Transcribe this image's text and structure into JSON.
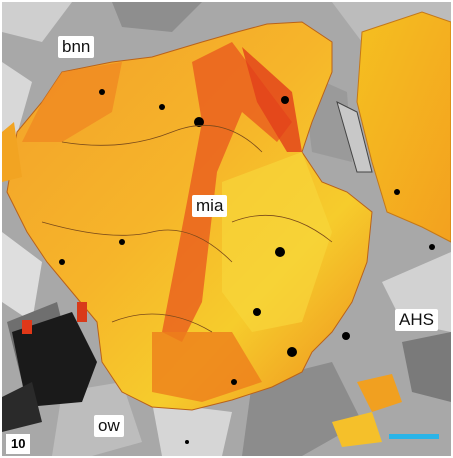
{
  "figure": {
    "panel_number": "10",
    "labels": {
      "bnn": "bnn",
      "mia": "mia",
      "ahs": "AHS",
      "ow": "ow"
    },
    "colors": {
      "matrix_gray": "#a7a7a7",
      "crystal_orange": "#f39a1f",
      "crystal_yellow": "#f7cf2a",
      "crystal_red": "#e8441c",
      "scale_bar": "#2ab4e8"
    }
  }
}
